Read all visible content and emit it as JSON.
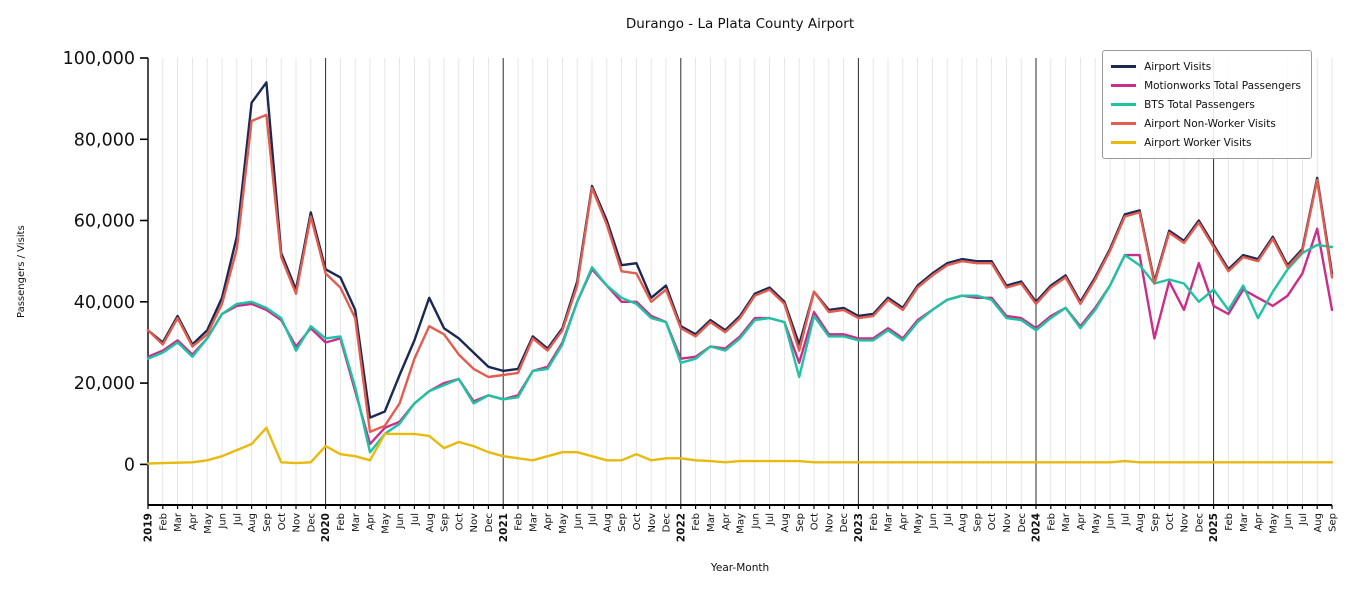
{
  "chart_data": {
    "type": "line",
    "title": "Durango - La Plata County Airport",
    "xlabel": "Year-Month",
    "ylabel": "Passengers / Visits",
    "ylim": [
      -10000,
      100000
    ],
    "yticks": [
      0,
      20000,
      40000,
      60000,
      80000,
      100000
    ],
    "grid": "vertical-monthly",
    "legend_position": "upper right",
    "x_labels": [
      "2019",
      "Feb",
      "Mar",
      "Apr",
      "May",
      "Jun",
      "Jul",
      "Aug",
      "Sep",
      "Oct",
      "Nov",
      "Dec",
      "2020",
      "Feb",
      "Mar",
      "Apr",
      "May",
      "Jun",
      "Jul",
      "Aug",
      "Sep",
      "Oct",
      "Nov",
      "Dec",
      "2021",
      "Feb",
      "Mar",
      "Apr",
      "May",
      "Jun",
      "Jul",
      "Aug",
      "Sep",
      "Oct",
      "Nov",
      "Dec",
      "2022",
      "Feb",
      "Mar",
      "Apr",
      "May",
      "Jun",
      "Jul",
      "Aug",
      "Sep",
      "Oct",
      "Nov",
      "Dec",
      "2023",
      "Feb",
      "Mar",
      "Apr",
      "May",
      "Jun",
      "Jul",
      "Aug",
      "Sep",
      "Oct",
      "Nov",
      "Dec",
      "2024",
      "Feb",
      "Mar",
      "Apr",
      "May",
      "Jun",
      "Jul",
      "Aug",
      "Sep",
      "Oct",
      "Nov",
      "Dec",
      "2025",
      "Feb",
      "Mar",
      "Apr",
      "May",
      "Jun",
      "Jul",
      "Aug",
      "Sep"
    ],
    "year_starts": [
      0,
      12,
      24,
      36,
      48,
      60,
      72
    ],
    "series": [
      {
        "name": "Airport Visits",
        "color": "#1b2a55",
        "values": [
          33000,
          30000,
          36500,
          29500,
          33000,
          41000,
          56000,
          89000,
          94000,
          52000,
          43000,
          62000,
          48000,
          46000,
          38000,
          11500,
          13000,
          22000,
          30500,
          41000,
          33500,
          31000,
          27500,
          24000,
          23000,
          23500,
          31500,
          28500,
          33500,
          45000,
          68500,
          60000,
          49000,
          49500,
          41000,
          44000,
          34000,
          32000,
          35500,
          33000,
          36500,
          42000,
          43500,
          40000,
          29500,
          42500,
          38000,
          38500,
          36500,
          37000,
          41000,
          38500,
          44000,
          47000,
          49500,
          50500,
          50000,
          50000,
          44000,
          45000,
          40000,
          44000,
          46500,
          40000,
          46000,
          53000,
          61500,
          62500,
          45000,
          57500,
          55000,
          60000,
          54000,
          48000,
          51500,
          50500,
          56000,
          49000,
          53000,
          70500,
          47000
        ]
      },
      {
        "name": "Motionworks Total Passengers",
        "color": "#cb2d8a",
        "values": [
          26500,
          28000,
          30500,
          27000,
          31000,
          37000,
          39000,
          39500,
          38000,
          35500,
          29000,
          33500,
          30000,
          31000,
          18000,
          5000,
          9000,
          10500,
          15000,
          18000,
          20000,
          21000,
          15500,
          17000,
          16000,
          17000,
          23000,
          24000,
          30000,
          40000,
          48000,
          44000,
          40000,
          40000,
          36500,
          35000,
          26000,
          26500,
          29000,
          28500,
          31500,
          36000,
          36000,
          35000,
          25000,
          37500,
          32000,
          32000,
          31000,
          31000,
          33500,
          31000,
          35500,
          38000,
          40500,
          41500,
          41000,
          41000,
          36500,
          36000,
          33500,
          36500,
          38500,
          34000,
          38500,
          44000,
          51500,
          51500,
          31000,
          45000,
          38000,
          49500,
          39000,
          37000,
          43000,
          41000,
          39000,
          41500,
          47000,
          58000,
          38000
        ]
      },
      {
        "name": "BTS Total Passengers",
        "color": "#1ec3a3",
        "values": [
          26000,
          27500,
          30000,
          26500,
          31000,
          37000,
          39500,
          40000,
          38500,
          36000,
          28000,
          34000,
          31000,
          31500,
          19000,
          3000,
          7500,
          10000,
          15000,
          18000,
          19500,
          21000,
          15000,
          17000,
          16000,
          16500,
          23000,
          23500,
          29500,
          40000,
          48500,
          44000,
          41000,
          39500,
          36000,
          35000,
          25000,
          26000,
          29000,
          28000,
          31000,
          35500,
          36000,
          35000,
          21500,
          36500,
          31500,
          31500,
          30500,
          30500,
          33000,
          30500,
          35000,
          38000,
          40500,
          41500,
          41500,
          40500,
          36000,
          35500,
          33000,
          36000,
          38500,
          33500,
          38000,
          44000,
          51500,
          49000,
          44500,
          45500,
          44500,
          40000,
          43000,
          38000,
          44000,
          36000,
          42500,
          48000,
          52000,
          54000,
          53500
        ]
      },
      {
        "name": "Airport Non-Worker Visits",
        "color": "#e25d4f",
        "values": [
          33000,
          29500,
          36000,
          29000,
          32000,
          39500,
          53000,
          84500,
          86000,
          51000,
          42000,
          61000,
          47000,
          43500,
          36000,
          8000,
          9500,
          15000,
          26000,
          34000,
          32000,
          27000,
          23500,
          21500,
          22000,
          22500,
          31000,
          28000,
          33000,
          44000,
          68000,
          59000,
          47500,
          47000,
          40000,
          43000,
          33500,
          31500,
          35000,
          32500,
          36000,
          41500,
          43000,
          39500,
          28000,
          42500,
          37500,
          38000,
          36000,
          36500,
          40500,
          38000,
          43500,
          46500,
          49000,
          50000,
          49500,
          49500,
          43500,
          44500,
          39500,
          43500,
          46000,
          39500,
          45500,
          52500,
          61000,
          62000,
          44500,
          57000,
          54500,
          59500,
          53500,
          47500,
          51000,
          50000,
          55500,
          48500,
          52500,
          70000,
          46000
        ]
      },
      {
        "name": "Airport Worker Visits",
        "color": "#e9b90e",
        "values": [
          200,
          300,
          400,
          500,
          1000,
          2000,
          3500,
          5000,
          9000,
          500,
          300,
          500,
          4500,
          2500,
          2000,
          1000,
          7500,
          7500,
          7500,
          7000,
          4000,
          5500,
          4500,
          3000,
          2000,
          1500,
          1000,
          2000,
          3000,
          3000,
          2000,
          1000,
          1000,
          2500,
          1000,
          1500,
          1500,
          1000,
          800,
          500,
          800,
          800,
          800,
          800,
          800,
          500,
          500,
          500,
          500,
          500,
          500,
          500,
          500,
          500,
          500,
          500,
          500,
          500,
          500,
          500,
          500,
          500,
          500,
          500,
          500,
          500,
          800,
          500,
          500,
          500,
          500,
          500,
          500,
          500,
          500,
          500,
          500,
          500,
          500,
          500,
          500
        ]
      }
    ]
  }
}
